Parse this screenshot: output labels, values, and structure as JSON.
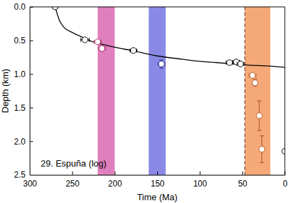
{
  "chart_data": {
    "type": "scatter",
    "x_label": "Time (Ma)",
    "y_label": "Depth (km)",
    "annotation": "29. Espuña (log)",
    "xlim": [
      300,
      0
    ],
    "ylim": [
      2.5,
      0
    ],
    "xticks": [
      300,
      250,
      200,
      150,
      100,
      50,
      0
    ],
    "yticks": [
      {
        "value": 0,
        "label": "0.0"
      },
      0.5,
      {
        "value": 1,
        "label": "1.0"
      },
      1.5,
      {
        "value": 2,
        "label": "2.0"
      },
      2.5
    ],
    "bands": [
      {
        "start": 220,
        "end": 200,
        "color": "#e07fbd"
      },
      {
        "start": 160,
        "end": 140,
        "color": "#8a8ae6"
      },
      {
        "start": 47,
        "end": 17,
        "color": "#f5a878"
      }
    ],
    "vlines": [
      {
        "x": 47,
        "line_style": "dashed",
        "color": "#6e4a3a"
      }
    ],
    "series": [
      {
        "type": "line",
        "color": "#000000",
        "line_style": "solid",
        "x": [
          270,
          265,
          260,
          250,
          240,
          230,
          220,
          200,
          180,
          150,
          120,
          100,
          80,
          60,
          40,
          20,
          0
        ],
        "values": [
          0,
          0.2,
          0.3,
          0.38,
          0.44,
          0.5,
          0.54,
          0.6,
          0.65,
          0.73,
          0.78,
          0.81,
          0.83,
          0.85,
          0.87,
          0.88,
          0.9
        ]
      },
      {
        "type": "scatter",
        "marker": "circle",
        "x": [
          270,
          235,
          220,
          215,
          178,
          145,
          65,
          57,
          52,
          38,
          35,
          30,
          27,
          0
        ],
        "values": [
          0.0,
          0.49,
          0.52,
          0.62,
          0.65,
          0.85,
          0.83,
          0.82,
          0.85,
          1.02,
          1.13,
          1.62,
          2.12,
          2.15
        ],
        "x_error": [
          3,
          5,
          4,
          4,
          4,
          4,
          4,
          4,
          4,
          4,
          3,
          2,
          2,
          2
        ],
        "y_error": [
          null,
          null,
          null,
          0.04,
          null,
          0.06,
          null,
          null,
          null,
          null,
          0.05,
          0.22,
          0.2,
          null
        ],
        "colors": [
          "#000000",
          "#000000",
          "#b0306e",
          "#b0306e",
          "#000000",
          "#3a3aa0",
          "#000000",
          "#000000",
          "#000000",
          "#b8602a",
          "#b8602a",
          "#b8602a",
          "#b8602a",
          "#000000"
        ]
      }
    ]
  }
}
